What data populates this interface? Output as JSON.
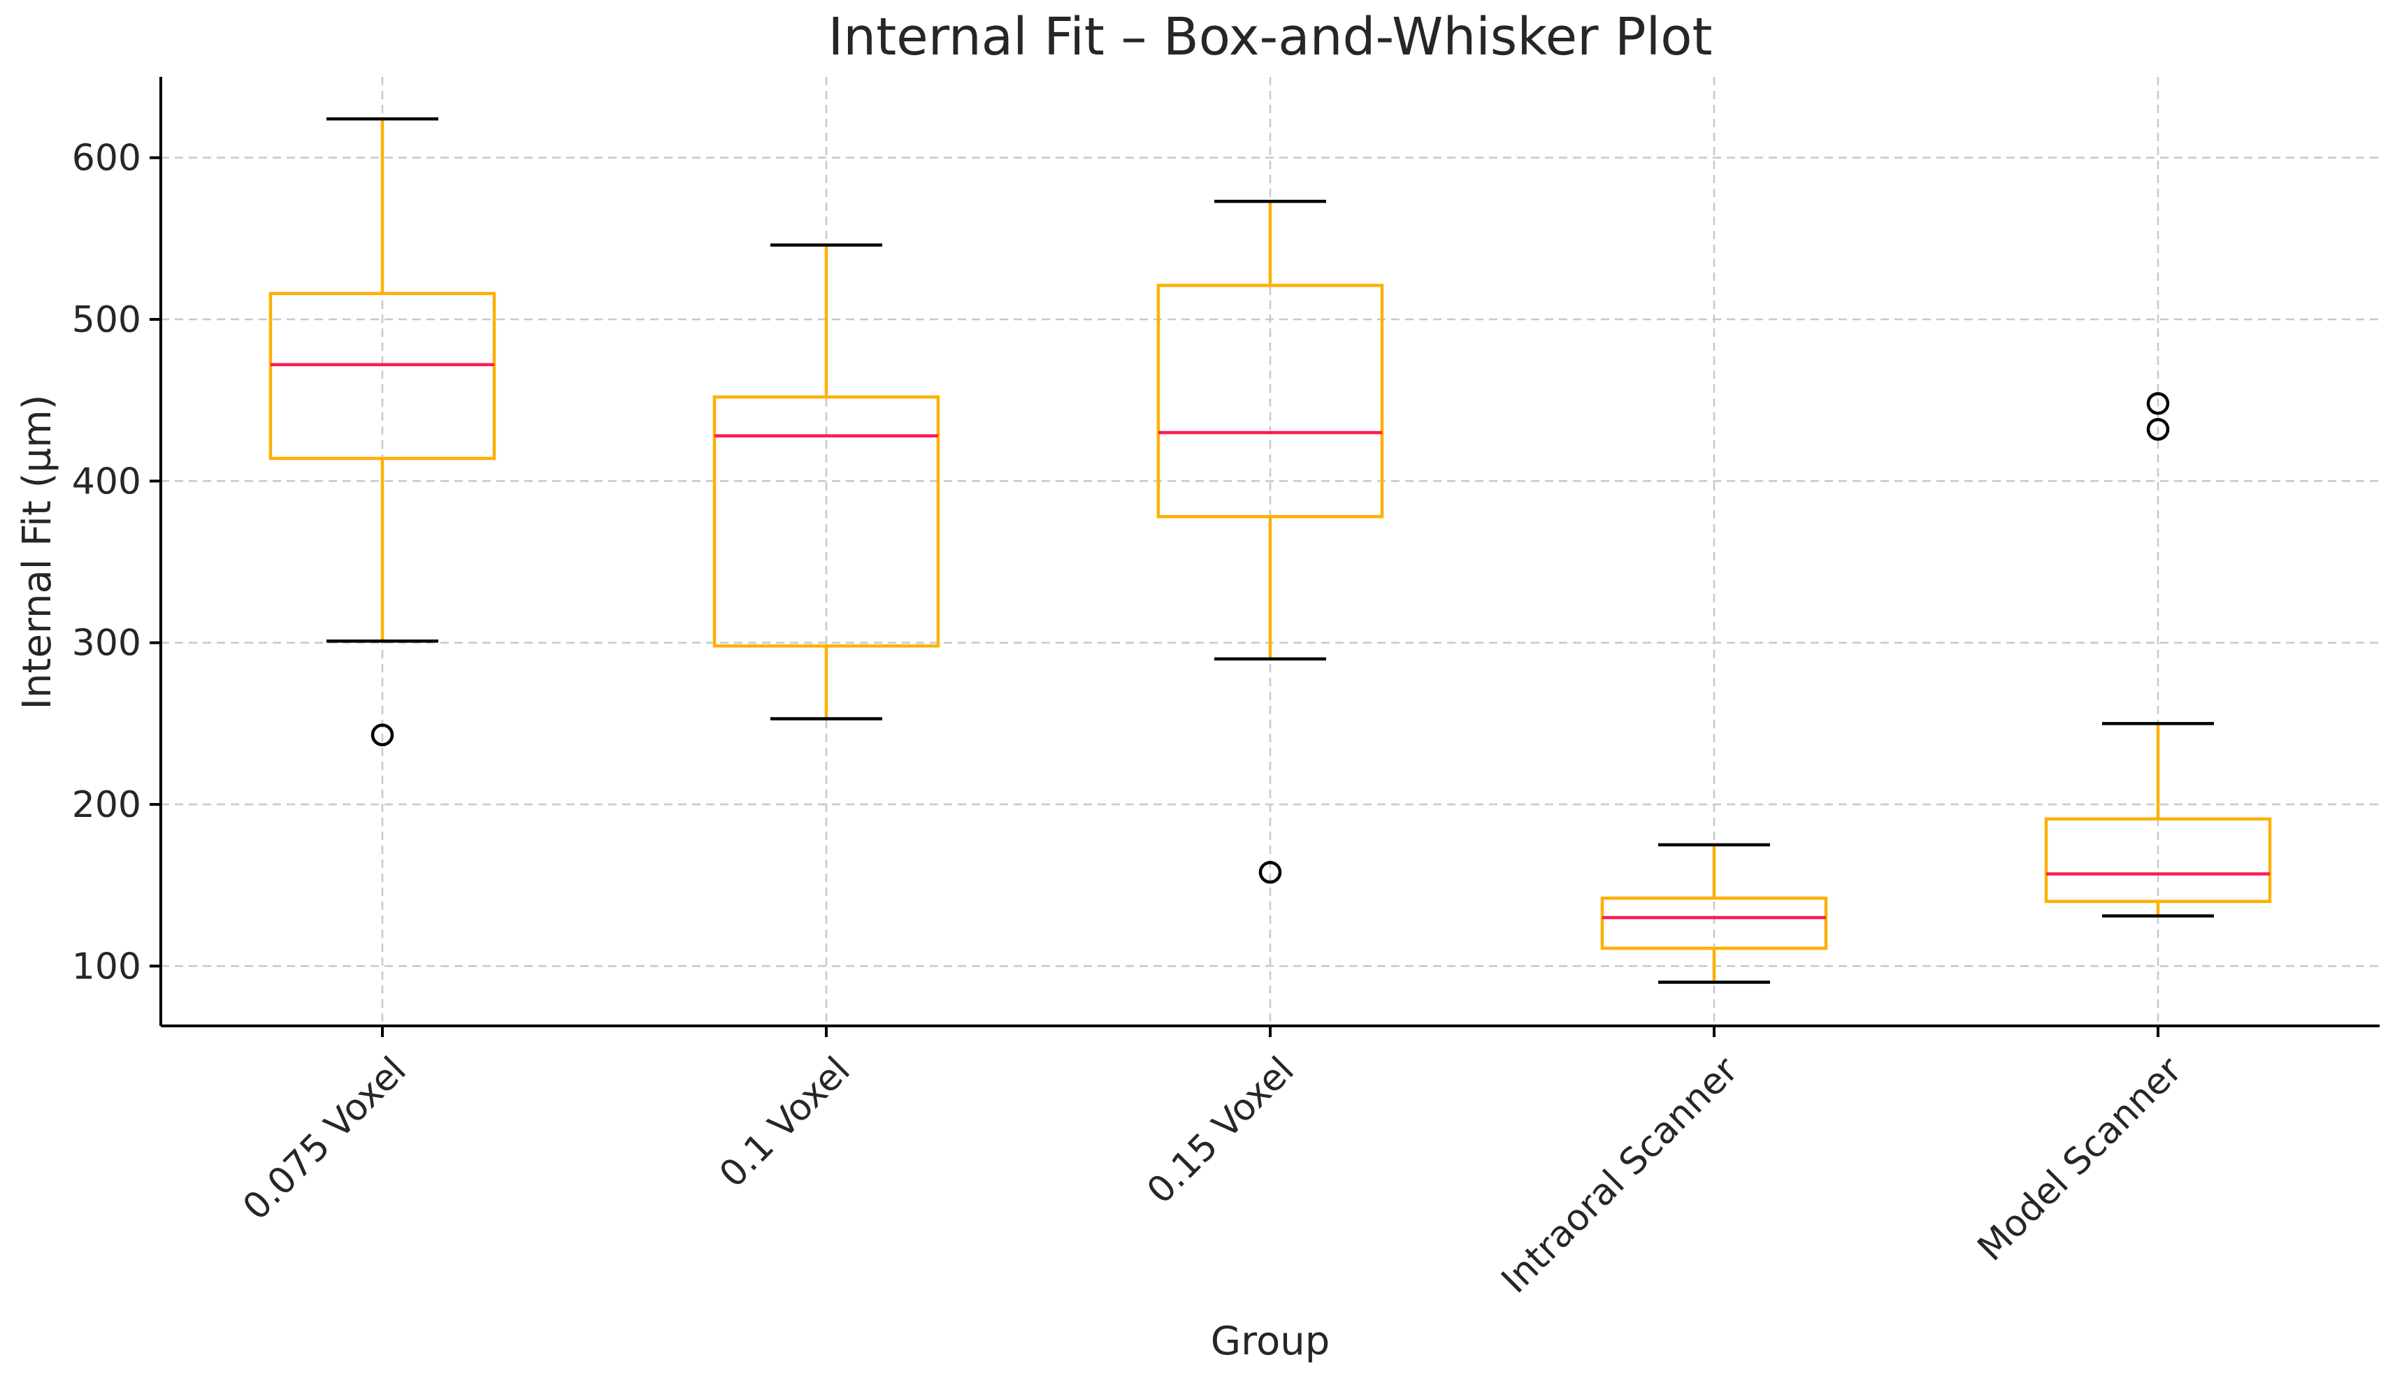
{
  "chart_data": {
    "type": "boxplot",
    "title": "Internal Fit – Box-and-Whisker Plot",
    "xlabel": "Group",
    "ylabel": "Internal Fit (µm)",
    "ylim": [
      63,
      650
    ],
    "yticks": [
      100,
      200,
      300,
      400,
      500,
      600
    ],
    "grid": true,
    "categories": [
      "0.075 Voxel",
      "0.1 Voxel",
      "0.15 Voxel",
      "Intraoral Scanner",
      "Model Scanner"
    ],
    "boxes": [
      {
        "group": "0.075 Voxel",
        "whisker_low": 301,
        "q1": 414,
        "median": 472,
        "q3": 516,
        "whisker_high": 624,
        "outliers": [
          243
        ]
      },
      {
        "group": "0.1 Voxel",
        "whisker_low": 253,
        "q1": 298,
        "median": 428,
        "q3": 452,
        "whisker_high": 546,
        "outliers": []
      },
      {
        "group": "0.15 Voxel",
        "whisker_low": 290,
        "q1": 378,
        "median": 430,
        "q3": 521,
        "whisker_high": 573,
        "outliers": [
          158
        ]
      },
      {
        "group": "Intraoral Scanner",
        "whisker_low": 90,
        "q1": 111,
        "median": 130,
        "q3": 142,
        "whisker_high": 175,
        "outliers": []
      },
      {
        "group": "Model Scanner",
        "whisker_low": 131,
        "q1": 140,
        "median": 157,
        "q3": 191,
        "whisker_high": 250,
        "outliers": [
          432,
          448
        ]
      }
    ],
    "colors": {
      "box": "#FFB000",
      "median": "#FF1A53",
      "whisker_cap": "#000000",
      "outlier": "#000000",
      "grid": "#c8c8c8",
      "axis": "#000000"
    }
  }
}
